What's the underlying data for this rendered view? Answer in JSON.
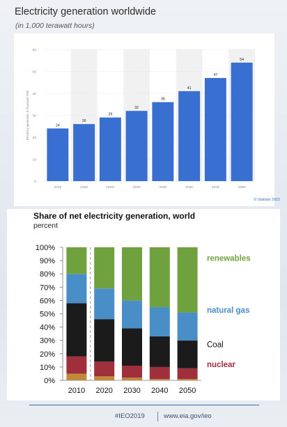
{
  "top_chart": {
    "title": "Electricity generation worldwide",
    "subtitle": "(in 1,000 terawatt hours)",
    "credit": "© Statista 2022"
  },
  "bottom_chart": {
    "title": "Share of net electricity generation, world",
    "subtitle": "percent"
  },
  "footer": {
    "hashtag": "#IEO2019",
    "url": "www.eia.gov/ieo"
  },
  "colors": {
    "bar_blue": "#3a6fd2",
    "renewables": "#6fa23e",
    "natural_gas": "#4a8ec8",
    "coal": "#1b1b1b",
    "nuclear": "#9e2f3b",
    "other": "#c08a3a"
  },
  "chart_data": [
    {
      "type": "bar",
      "title": "Electricity generation worldwide",
      "subtitle": "(in 1,000 terawatt hours)",
      "categories": [
        "2015",
        "2020",
        "2025*",
        "2030",
        "2035",
        "2040",
        "2045",
        "2050"
      ],
      "values": [
        24,
        26,
        29,
        32,
        36,
        41,
        47,
        54
      ],
      "data_labels": [
        "24",
        "26",
        "29",
        "32",
        "36",
        "41",
        "47",
        "54"
      ],
      "ylabel": "Electricity generation in thousand TWh",
      "ylim": [
        0,
        60
      ],
      "yticks": [
        0,
        10,
        20,
        30,
        40,
        50,
        60
      ],
      "grid": true,
      "color": "#3a6fd2"
    },
    {
      "type": "bar",
      "stacked": true,
      "title": "Share of net electricity generation, world",
      "subtitle": "percent",
      "categories": [
        "2010",
        "2020",
        "2030",
        "2040",
        "2050"
      ],
      "ylim": [
        0,
        100
      ],
      "yticks": [
        "0%",
        "10%",
        "20%",
        "30%",
        "40%",
        "50%",
        "60%",
        "70%",
        "80%",
        "90%",
        "100%"
      ],
      "series": [
        {
          "name": "",
          "values": [
            5,
            3,
            2,
            1,
            1
          ],
          "color": "#c08a3a"
        },
        {
          "name": "nuclear",
          "values": [
            13,
            11,
            9,
            9,
            8
          ],
          "color": "#9e2f3b"
        },
        {
          "name": "Coal",
          "values": [
            40,
            32,
            28,
            23,
            21
          ],
          "color": "#1b1b1b"
        },
        {
          "name": "natural gas",
          "values": [
            22,
            23,
            21,
            22,
            21
          ],
          "color": "#4a8ec8"
        },
        {
          "name": "renewables",
          "values": [
            20,
            31,
            40,
            45,
            49
          ],
          "color": "#6fa23e"
        }
      ],
      "legend_labels": [
        "renewables",
        "natural gas",
        "Coal",
        "nuclear"
      ],
      "divider_after_category": "2010"
    }
  ]
}
